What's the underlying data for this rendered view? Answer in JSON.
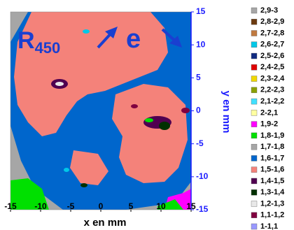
{
  "chart_data": {
    "type": "contour",
    "xlabel": "x en mm",
    "ylabel": "y en mm",
    "xlim": [
      -15,
      15
    ],
    "ylim": [
      -15,
      15
    ],
    "xticks": [
      -15,
      -10,
      -5,
      0,
      5,
      10,
      15
    ],
    "yticks": [
      -15,
      -10,
      -5,
      0,
      5,
      10,
      15
    ],
    "annotation": {
      "text": "R",
      "subscript": "450",
      "arrow_label": "e"
    },
    "legend": [
      {
        "name": "2,9-3",
        "color": "#a6a6a6"
      },
      {
        "name": "2,8-2,9",
        "color": "#6b3a10"
      },
      {
        "name": "2,7-2,8",
        "color": "#c07a40"
      },
      {
        "name": "2,6-2,7",
        "color": "#00c8e8"
      },
      {
        "name": "2,5-2,6",
        "color": "#102a80"
      },
      {
        "name": "2,4-2,5",
        "color": "#e00000"
      },
      {
        "name": "2,3-2,4",
        "color": "#f0d800"
      },
      {
        "name": "2,2-2,3",
        "color": "#8aa000"
      },
      {
        "name": "2,1-2,2",
        "color": "#40e0ff"
      },
      {
        "name": "2-2,1",
        "color": "#ffffa0"
      },
      {
        "name": "1,9-2",
        "color": "#ff00ff"
      },
      {
        "name": "1,8-1,9",
        "color": "#00e000"
      },
      {
        "name": "1,7-1,8",
        "color": "#a6a6a6"
      },
      {
        "name": "1,6-1,7",
        "color": "#0066cc"
      },
      {
        "name": "1,5-1,6",
        "color": "#f4827a"
      },
      {
        "name": "1,4-1,5",
        "color": "#500050"
      },
      {
        "name": "1,3-1,4",
        "color": "#003000"
      },
      {
        "name": "1,2-1,3",
        "color": "#e8e8e8"
      },
      {
        "name": "1,1-1,2",
        "color": "#800040"
      },
      {
        "name": "1-1,1",
        "color": "#9999ff"
      }
    ]
  }
}
